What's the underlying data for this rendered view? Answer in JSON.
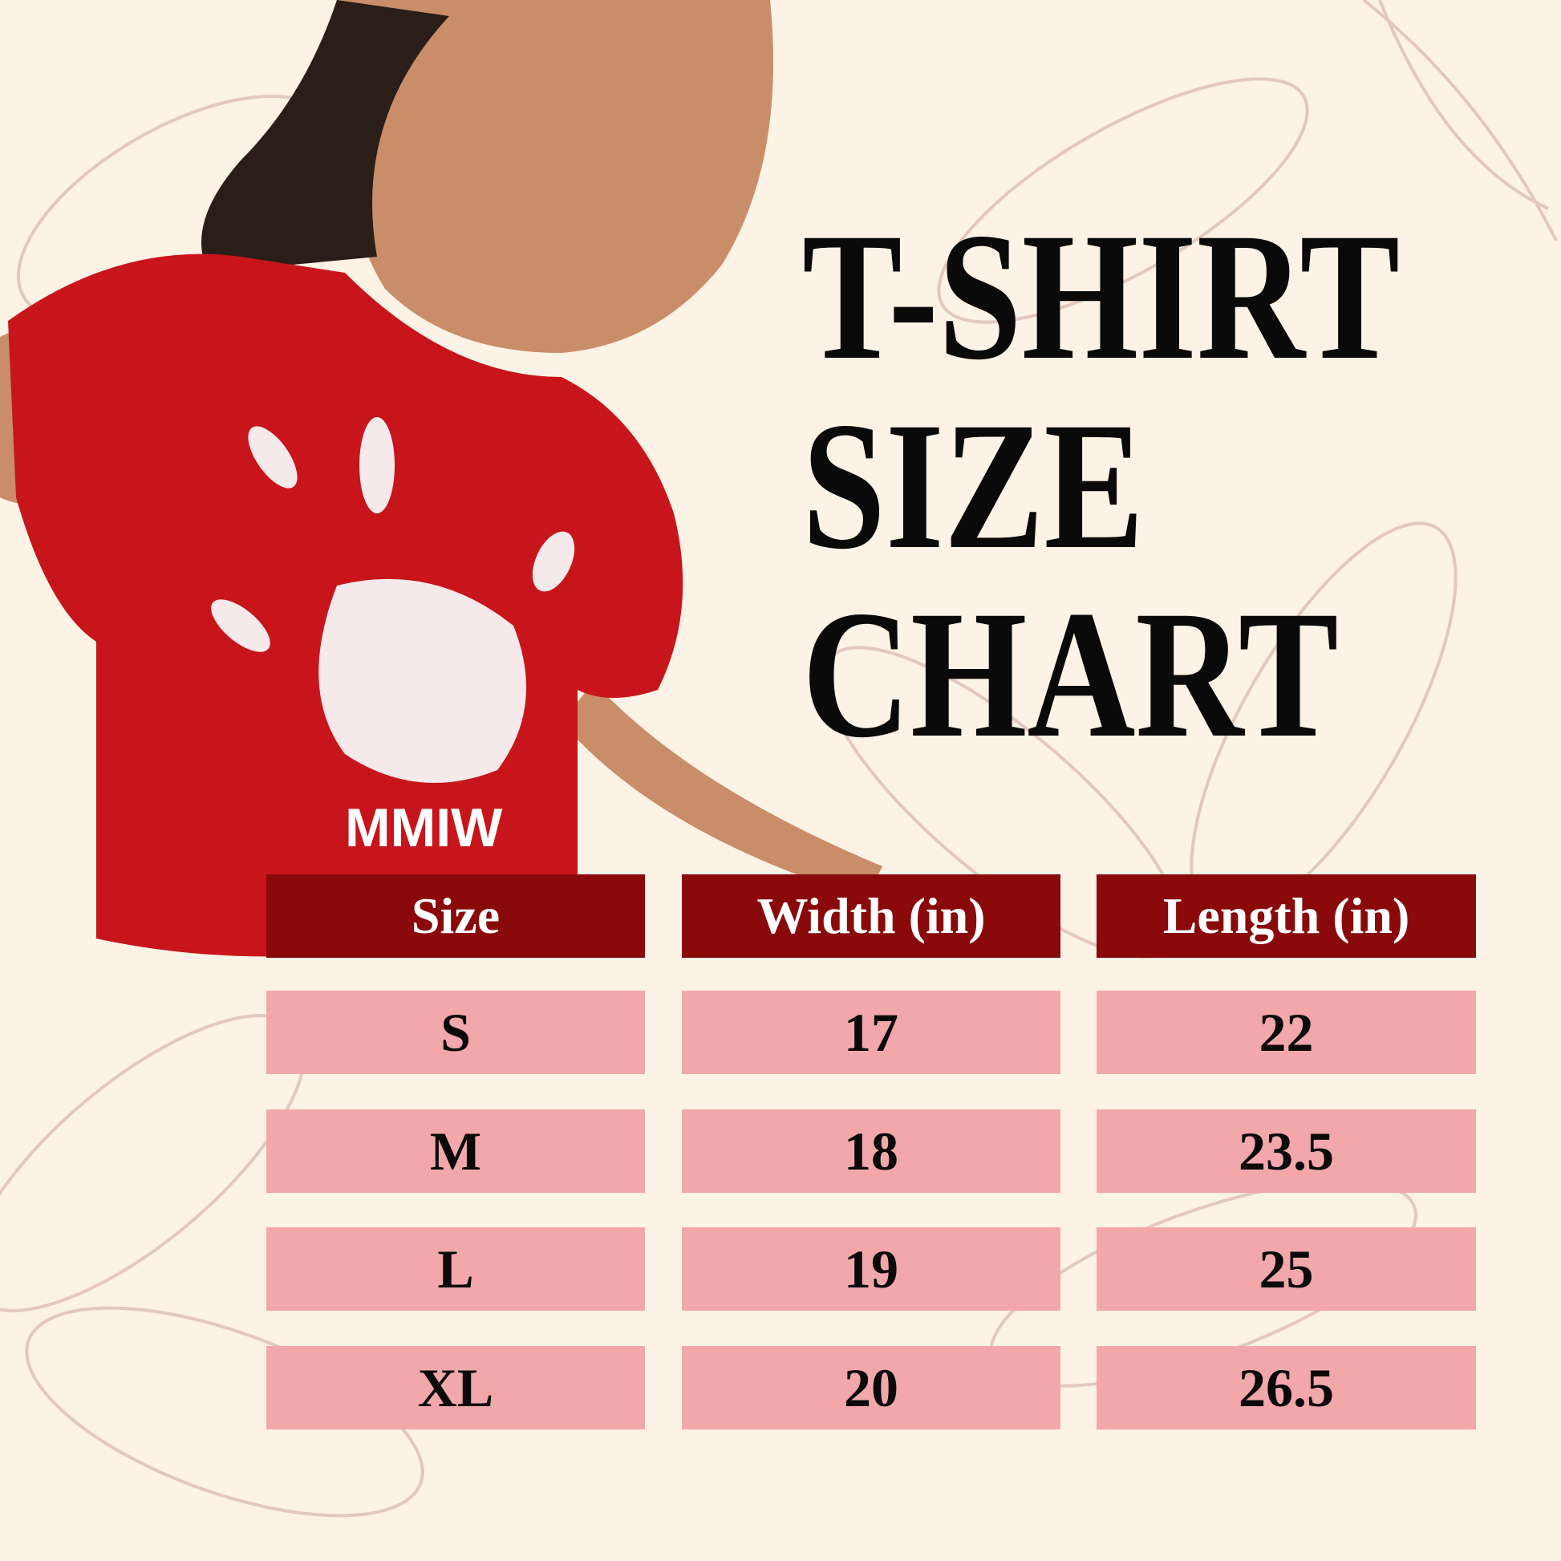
{
  "title": {
    "line1": "T-SHIRT",
    "line2": "SIZE",
    "line3": "CHART"
  },
  "shirt_print": {
    "text": "MMIW"
  },
  "table": {
    "headers": [
      "Size",
      "Width (in)",
      "Length (in)"
    ],
    "rows": [
      [
        "S",
        "17",
        "22"
      ],
      [
        "M",
        "18",
        "23.5"
      ],
      [
        "L",
        "19",
        "25"
      ],
      [
        "XL",
        "20",
        "26.5"
      ]
    ]
  },
  "colors": {
    "header_bg": "#8a090b",
    "row_bg": "#f2a7ab",
    "background": "#fcf2e6",
    "shirt": "#c8151b"
  }
}
